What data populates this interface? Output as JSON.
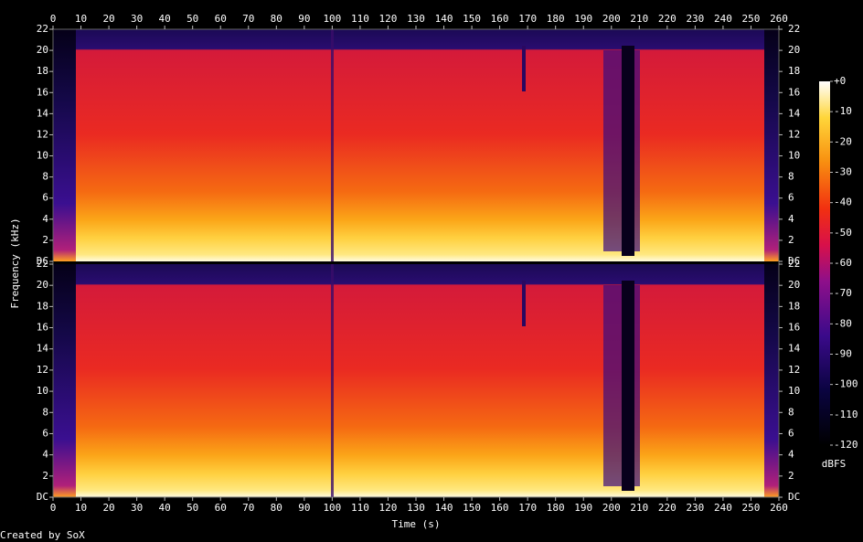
{
  "chart_data": {
    "type": "spectrogram",
    "xlabel": "Time (s)",
    "ylabel": "Frequency (kHz)",
    "footer": "Created by SoX",
    "xlim": [
      0,
      260
    ],
    "xticks": [
      0,
      10,
      20,
      30,
      40,
      50,
      60,
      70,
      80,
      90,
      100,
      110,
      120,
      130,
      140,
      150,
      160,
      170,
      180,
      190,
      200,
      210,
      220,
      230,
      240,
      250,
      260
    ],
    "ylim": [
      0,
      22
    ],
    "yticks": [
      {
        "value": 0,
        "label": "DC"
      },
      2,
      4,
      6,
      8,
      10,
      12,
      14,
      16,
      18,
      20,
      22
    ],
    "colorbar_label": "dBFS",
    "clim": [
      -120,
      0
    ],
    "cticks": [
      {
        "value": 0,
        "label": "+0"
      },
      -10,
      -20,
      -30,
      -40,
      -50,
      -60,
      -70,
      -80,
      -90,
      -100,
      -110,
      -120
    ]
  }
}
